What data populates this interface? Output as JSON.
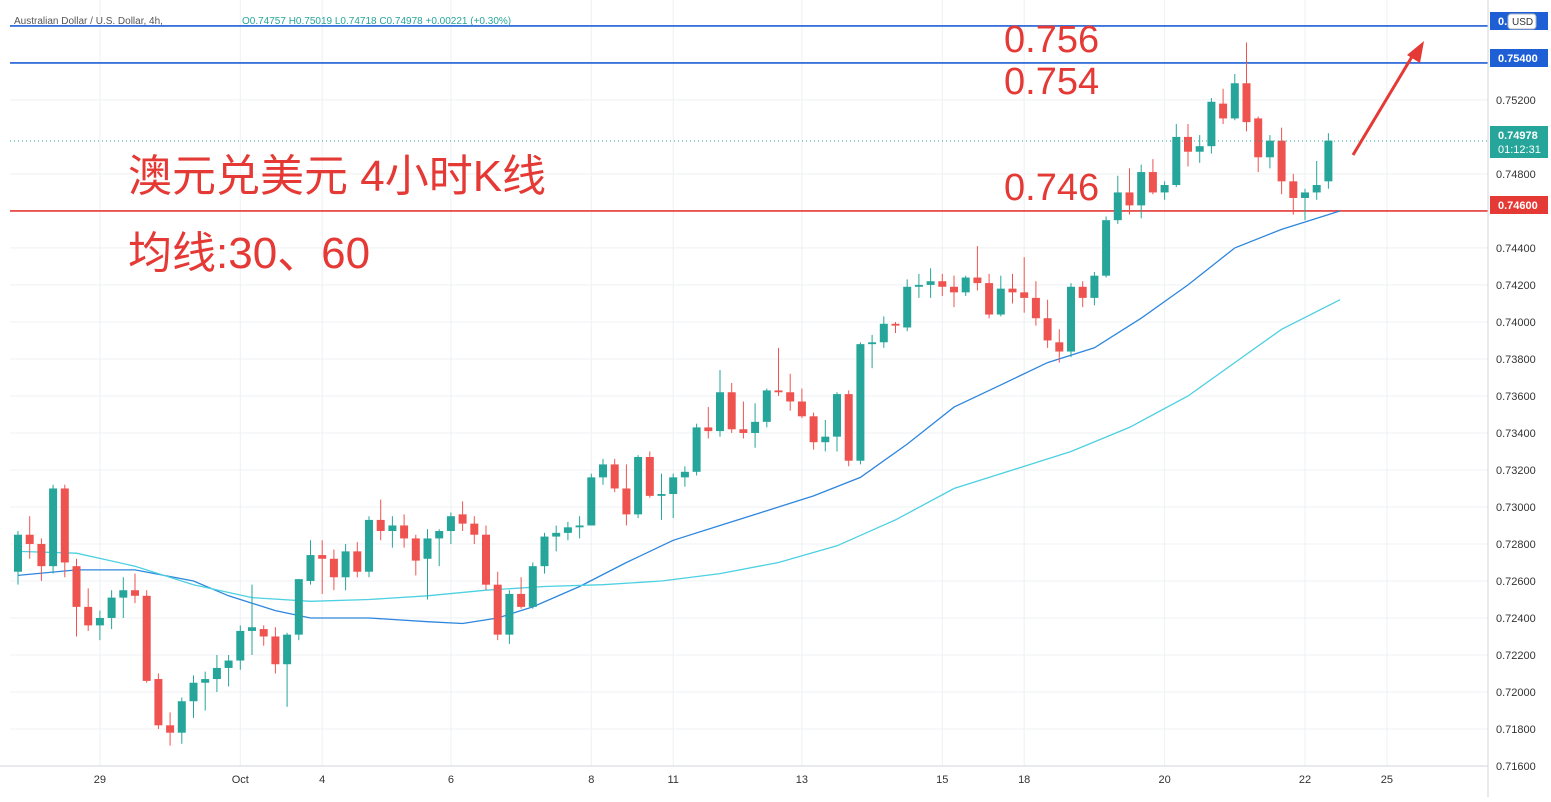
{
  "header": {
    "symbol": "Australian Dollar / U.S. Dollar, 4h,",
    "ohlc": "O0.74757 H0.75019 L0.74718 C0.74978 +0.00221 (+0.30%)"
  },
  "currency_button": "USD",
  "colors": {
    "up": "#26a69a",
    "down": "#ef5350",
    "ma30": "#2e86de",
    "ma60": "#4dd0e1",
    "hline_blue": "#1e5fd6",
    "hline_red": "#e53935",
    "annotation": "#e53935",
    "price_badge": "#26a69a",
    "grid": "#eef0f3",
    "axis_text": "#333333"
  },
  "annotations": {
    "title": "澳元兑美元 4小时K线",
    "subtitle": "均线:30、60",
    "level_756": "0.756",
    "level_754": "0.754",
    "level_746": "0.746"
  },
  "price_scale": {
    "ticks": [
      "0.75200",
      "0.74800",
      "0.74400",
      "0.74200",
      "0.74000",
      "0.73800",
      "0.73600",
      "0.73400",
      "0.73200",
      "0.73000",
      "0.72800",
      "0.72600",
      "0.72400",
      "0.72200",
      "0.72000",
      "0.71800",
      "0.71600"
    ],
    "badge_top": "0.7",
    "badge_754": "0.75400",
    "badge_last": "0.74978",
    "badge_countdown": "01:12:31",
    "badge_746": "0.74600"
  },
  "time_scale": {
    "ticks": [
      "29",
      "Oct",
      "4",
      "6",
      "8",
      "11",
      "13",
      "15",
      "18",
      "20",
      "22",
      "25"
    ]
  },
  "chart_data": {
    "type": "candlestick",
    "symbol": "AUDUSD",
    "timeframe": "4h",
    "ylim": [
      0.716,
      0.7574
    ],
    "horizontal_lines": [
      {
        "price": 0.756,
        "color": "blue"
      },
      {
        "price": 0.754,
        "color": "blue"
      },
      {
        "price": 0.746,
        "color": "red"
      }
    ],
    "last_price": 0.74978,
    "candles": [
      [
        0.7265,
        0.7287,
        0.7258,
        0.7285
      ],
      [
        0.7285,
        0.7295,
        0.7272,
        0.728
      ],
      [
        0.728,
        0.7283,
        0.726,
        0.7268
      ],
      [
        0.7268,
        0.7312,
        0.7264,
        0.731
      ],
      [
        0.731,
        0.7312,
        0.7262,
        0.727
      ],
      [
        0.7268,
        0.7272,
        0.723,
        0.7246
      ],
      [
        0.7246,
        0.7256,
        0.7233,
        0.7236
      ],
      [
        0.7236,
        0.7244,
        0.7228,
        0.724
      ],
      [
        0.724,
        0.7255,
        0.7234,
        0.7251
      ],
      [
        0.7251,
        0.7262,
        0.724,
        0.7255
      ],
      [
        0.7255,
        0.7264,
        0.7248,
        0.7252
      ],
      [
        0.7252,
        0.7255,
        0.7205,
        0.7206
      ],
      [
        0.7207,
        0.721,
        0.718,
        0.7182
      ],
      [
        0.7182,
        0.7189,
        0.7171,
        0.7178
      ],
      [
        0.7178,
        0.7197,
        0.7172,
        0.7195
      ],
      [
        0.7195,
        0.7209,
        0.7186,
        0.7205
      ],
      [
        0.7205,
        0.7211,
        0.719,
        0.7207
      ],
      [
        0.7207,
        0.722,
        0.72,
        0.7213
      ],
      [
        0.7213,
        0.722,
        0.7203,
        0.7217
      ],
      [
        0.7217,
        0.7236,
        0.7212,
        0.7233
      ],
      [
        0.7233,
        0.7258,
        0.722,
        0.7235
      ],
      [
        0.7234,
        0.7236,
        0.7225,
        0.723
      ],
      [
        0.723,
        0.7235,
        0.721,
        0.7215
      ],
      [
        0.7215,
        0.7232,
        0.7192,
        0.7231
      ],
      [
        0.7231,
        0.7261,
        0.7228,
        0.7261
      ],
      [
        0.726,
        0.7282,
        0.7258,
        0.7274
      ],
      [
        0.7274,
        0.7282,
        0.7253,
        0.7272
      ],
      [
        0.7272,
        0.7277,
        0.7255,
        0.7262
      ],
      [
        0.7262,
        0.728,
        0.7255,
        0.7276
      ],
      [
        0.7276,
        0.7281,
        0.7262,
        0.7265
      ],
      [
        0.7265,
        0.7295,
        0.7262,
        0.7293
      ],
      [
        0.7293,
        0.7304,
        0.7282,
        0.7287
      ],
      [
        0.7287,
        0.7295,
        0.7278,
        0.729
      ],
      [
        0.729,
        0.7296,
        0.7278,
        0.7283
      ],
      [
        0.7283,
        0.7285,
        0.7263,
        0.7271
      ],
      [
        0.7272,
        0.7288,
        0.725,
        0.7283
      ],
      [
        0.7283,
        0.7288,
        0.7268,
        0.7287
      ],
      [
        0.7287,
        0.7297,
        0.728,
        0.7295
      ],
      [
        0.7296,
        0.7303,
        0.7287,
        0.7291
      ],
      [
        0.7291,
        0.7295,
        0.728,
        0.7285
      ],
      [
        0.7285,
        0.729,
        0.7255,
        0.7258
      ],
      [
        0.7258,
        0.7265,
        0.7228,
        0.7231
      ],
      [
        0.7231,
        0.7255,
        0.7226,
        0.7253
      ],
      [
        0.7253,
        0.7262,
        0.7245,
        0.7246
      ],
      [
        0.7246,
        0.727,
        0.7245,
        0.7268
      ],
      [
        0.7268,
        0.7286,
        0.7264,
        0.7284
      ],
      [
        0.7284,
        0.729,
        0.7276,
        0.7286
      ],
      [
        0.7286,
        0.7292,
        0.7282,
        0.7289
      ],
      [
        0.7289,
        0.7295,
        0.7283,
        0.729
      ],
      [
        0.729,
        0.7318,
        0.729,
        0.7316
      ],
      [
        0.7316,
        0.7326,
        0.7312,
        0.7323
      ],
      [
        0.7323,
        0.7326,
        0.7308,
        0.731
      ],
      [
        0.731,
        0.7323,
        0.729,
        0.7296
      ],
      [
        0.7296,
        0.7328,
        0.7294,
        0.7327
      ],
      [
        0.7327,
        0.733,
        0.7305,
        0.7306
      ],
      [
        0.7306,
        0.7318,
        0.7293,
        0.7307
      ],
      [
        0.7307,
        0.7318,
        0.7294,
        0.7316
      ],
      [
        0.7316,
        0.7322,
        0.7311,
        0.7319
      ],
      [
        0.7319,
        0.7345,
        0.7317,
        0.7343
      ],
      [
        0.7343,
        0.7354,
        0.7337,
        0.7341
      ],
      [
        0.7341,
        0.7374,
        0.7338,
        0.7362
      ],
      [
        0.7362,
        0.7367,
        0.734,
        0.7342
      ],
      [
        0.7342,
        0.7357,
        0.7337,
        0.734
      ],
      [
        0.734,
        0.7356,
        0.7332,
        0.7346
      ],
      [
        0.7346,
        0.7364,
        0.7343,
        0.7363
      ],
      [
        0.7363,
        0.7386,
        0.736,
        0.7362
      ],
      [
        0.7362,
        0.7372,
        0.7352,
        0.7357
      ],
      [
        0.7357,
        0.7364,
        0.7348,
        0.7349
      ],
      [
        0.7349,
        0.7351,
        0.7331,
        0.7335
      ],
      [
        0.7335,
        0.7347,
        0.733,
        0.7338
      ],
      [
        0.7338,
        0.7362,
        0.733,
        0.7361
      ],
      [
        0.7361,
        0.7363,
        0.7322,
        0.7325
      ],
      [
        0.7325,
        0.7389,
        0.7323,
        0.7388
      ],
      [
        0.7388,
        0.7393,
        0.7375,
        0.7389
      ],
      [
        0.7389,
        0.7403,
        0.7386,
        0.7399
      ],
      [
        0.7399,
        0.74,
        0.7394,
        0.7398
      ],
      [
        0.7397,
        0.7423,
        0.7395,
        0.7419
      ],
      [
        0.7419,
        0.7426,
        0.7413,
        0.742
      ],
      [
        0.742,
        0.7429,
        0.7413,
        0.7422
      ],
      [
        0.7422,
        0.7426,
        0.7414,
        0.7419
      ],
      [
        0.7419,
        0.7425,
        0.7408,
        0.7416
      ],
      [
        0.7416,
        0.7425,
        0.7414,
        0.7424
      ],
      [
        0.7424,
        0.7441,
        0.7417,
        0.7421
      ],
      [
        0.7421,
        0.7426,
        0.7402,
        0.7404
      ],
      [
        0.7404,
        0.7425,
        0.7403,
        0.7418
      ],
      [
        0.7418,
        0.7426,
        0.741,
        0.7416
      ],
      [
        0.7416,
        0.7435,
        0.7405,
        0.7413
      ],
      [
        0.7413,
        0.7422,
        0.7398,
        0.7402
      ],
      [
        0.7402,
        0.7412,
        0.7386,
        0.739
      ],
      [
        0.7389,
        0.7396,
        0.7378,
        0.7384
      ],
      [
        0.7384,
        0.7421,
        0.7381,
        0.7419
      ],
      [
        0.7419,
        0.7422,
        0.7408,
        0.7413
      ],
      [
        0.7413,
        0.7427,
        0.7409,
        0.7425
      ],
      [
        0.7425,
        0.7457,
        0.7424,
        0.7455
      ],
      [
        0.7455,
        0.7479,
        0.7453,
        0.747
      ],
      [
        0.747,
        0.7483,
        0.7458,
        0.7463
      ],
      [
        0.7463,
        0.7485,
        0.7456,
        0.7481
      ],
      [
        0.7481,
        0.7488,
        0.7469,
        0.747
      ],
      [
        0.747,
        0.7476,
        0.7466,
        0.7474
      ],
      [
        0.7474,
        0.7507,
        0.7473,
        0.75
      ],
      [
        0.75,
        0.7507,
        0.7484,
        0.7492
      ],
      [
        0.7492,
        0.7501,
        0.7486,
        0.7495
      ],
      [
        0.7495,
        0.7521,
        0.7491,
        0.7519
      ],
      [
        0.7518,
        0.7526,
        0.7507,
        0.751
      ],
      [
        0.751,
        0.7534,
        0.7509,
        0.7529
      ],
      [
        0.7529,
        0.7551,
        0.7503,
        0.7508
      ],
      [
        0.751,
        0.7511,
        0.7481,
        0.7489
      ],
      [
        0.7489,
        0.7501,
        0.7483,
        0.7498
      ],
      [
        0.7498,
        0.7505,
        0.7469,
        0.7476
      ],
      [
        0.7476,
        0.748,
        0.7458,
        0.7467
      ],
      [
        0.7467,
        0.7472,
        0.7455,
        0.747
      ],
      [
        0.747,
        0.7487,
        0.7466,
        0.7474
      ],
      [
        0.7476,
        0.7502,
        0.7472,
        0.7498
      ]
    ],
    "ma30": [
      [
        0,
        0.7263
      ],
      [
        5,
        0.7266
      ],
      [
        10,
        0.7266
      ],
      [
        15,
        0.726
      ],
      [
        18,
        0.7252
      ],
      [
        22,
        0.7244
      ],
      [
        25,
        0.724
      ],
      [
        30,
        0.724
      ],
      [
        35,
        0.7238
      ],
      [
        38,
        0.7237
      ],
      [
        41,
        0.724
      ],
      [
        44,
        0.7246
      ],
      [
        48,
        0.7257
      ],
      [
        52,
        0.727
      ],
      [
        56,
        0.7282
      ],
      [
        60,
        0.729
      ],
      [
        64,
        0.7298
      ],
      [
        68,
        0.7306
      ],
      [
        72,
        0.7316
      ],
      [
        76,
        0.7334
      ],
      [
        80,
        0.7354
      ],
      [
        84,
        0.7366
      ],
      [
        88,
        0.7378
      ],
      [
        92,
        0.7386
      ],
      [
        96,
        0.7402
      ],
      [
        100,
        0.742
      ],
      [
        104,
        0.744
      ],
      [
        108,
        0.745
      ],
      [
        112,
        0.7458
      ],
      [
        113,
        0.746
      ]
    ],
    "ma60": [
      [
        0,
        0.7276
      ],
      [
        5,
        0.7275
      ],
      [
        10,
        0.7268
      ],
      [
        15,
        0.7258
      ],
      [
        20,
        0.7251
      ],
      [
        25,
        0.7249
      ],
      [
        30,
        0.725
      ],
      [
        35,
        0.7252
      ],
      [
        40,
        0.7255
      ],
      [
        45,
        0.7257
      ],
      [
        50,
        0.7258
      ],
      [
        55,
        0.726
      ],
      [
        60,
        0.7264
      ],
      [
        65,
        0.727
      ],
      [
        70,
        0.7279
      ],
      [
        75,
        0.7293
      ],
      [
        80,
        0.731
      ],
      [
        85,
        0.732
      ],
      [
        90,
        0.733
      ],
      [
        95,
        0.7343
      ],
      [
        100,
        0.736
      ],
      [
        104,
        0.7378
      ],
      [
        108,
        0.7396
      ],
      [
        113,
        0.7412
      ]
    ]
  }
}
